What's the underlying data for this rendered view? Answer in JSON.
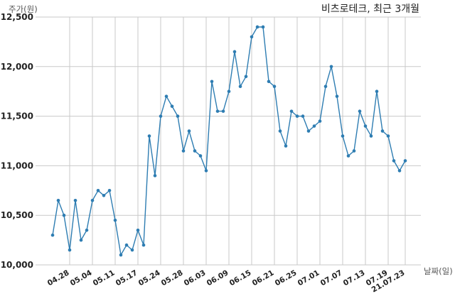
{
  "chart_data": {
    "type": "line",
    "title": "비츠로테크, 최근 3개월",
    "ylabel": "주가(원)",
    "xlabel": "날짜(일)",
    "ylim": [
      10000,
      12500
    ],
    "yticks": [
      10000,
      10500,
      11000,
      11500,
      12000,
      12500
    ],
    "ytick_labels": [
      "10,000",
      "10,500",
      "11,000",
      "11,500",
      "12,000",
      "12,500"
    ],
    "grid": true,
    "color": "#2e7db2",
    "x_ticks": [
      {
        "index": 3,
        "label": "04.28"
      },
      {
        "index": 7,
        "label": "05.04"
      },
      {
        "index": 11,
        "label": "05.11"
      },
      {
        "index": 15,
        "label": "05.17"
      },
      {
        "index": 19,
        "label": "05.24"
      },
      {
        "index": 23,
        "label": "05.28"
      },
      {
        "index": 27,
        "label": "06.03"
      },
      {
        "index": 31,
        "label": "06.09"
      },
      {
        "index": 35,
        "label": "06.15"
      },
      {
        "index": 39,
        "label": "06.21"
      },
      {
        "index": 43,
        "label": "06.25"
      },
      {
        "index": 47,
        "label": "07.01"
      },
      {
        "index": 51,
        "label": "07.07"
      },
      {
        "index": 55,
        "label": "07.13"
      },
      {
        "index": 59,
        "label": "07.19"
      },
      {
        "index": 62,
        "label": "21.07.23"
      }
    ],
    "values": [
      10300,
      10650,
      10500,
      10150,
      10650,
      10250,
      10350,
      10650,
      10750,
      10700,
      10750,
      10450,
      10100,
      10200,
      10150,
      10350,
      10200,
      11300,
      10900,
      11500,
      11700,
      11600,
      11500,
      11150,
      11350,
      11150,
      11100,
      10950,
      11850,
      11550,
      11550,
      11750,
      12150,
      11800,
      11900,
      12300,
      12400,
      12400,
      11850,
      11800,
      11350,
      11200,
      11550,
      11500,
      11500,
      11350,
      11400,
      11450,
      11800,
      12000,
      11700,
      11300,
      11100,
      11150,
      11550,
      11400,
      11300,
      11750,
      11350,
      11300,
      11050,
      10950,
      11050
    ]
  }
}
